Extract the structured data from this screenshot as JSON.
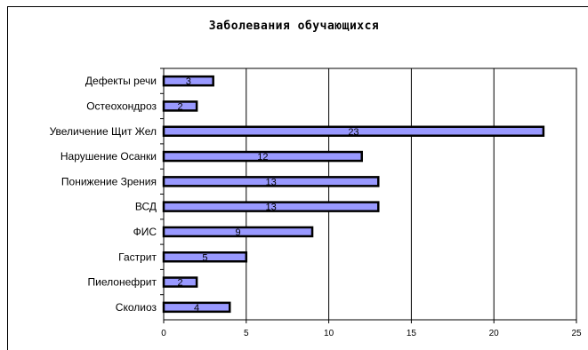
{
  "chart_data": {
    "type": "bar",
    "orientation": "horizontal",
    "title": "Заболевания обучающихся",
    "categories": [
      "Дефекты речи",
      "Остеохондроз",
      "Увеличение Щит Жел",
      "Нарушение Осанки",
      "Понижение Зрения",
      "ВСД",
      "ФИС",
      "Гастрит",
      "Пиелонефрит",
      "Сколиоз"
    ],
    "values": [
      3,
      2,
      23,
      12,
      13,
      13,
      9,
      5,
      2,
      4
    ],
    "xlim": [
      0,
      25
    ],
    "xticks": [
      0,
      5,
      10,
      15,
      20,
      25
    ],
    "xlabel": "",
    "ylabel": "",
    "grid": "vertical",
    "legend": "none",
    "bar_color": "#9999ff",
    "bar_edge_color": "#000000"
  }
}
